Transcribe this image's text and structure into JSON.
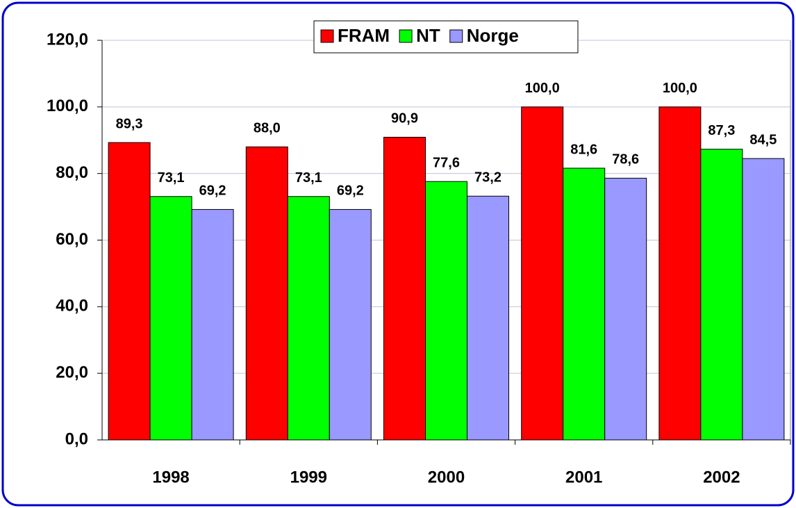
{
  "chart_data": {
    "type": "bar",
    "categories": [
      "1998",
      "1999",
      "2000",
      "2001",
      "2002"
    ],
    "series": [
      {
        "name": "FRAM",
        "color": "#ff0000",
        "values": [
          89.3,
          88.0,
          90.9,
          100.0,
          100.0
        ],
        "value_labels": [
          "89,3",
          "88,0",
          "90,9",
          "100,0",
          "100,0"
        ]
      },
      {
        "name": "NT",
        "color": "#00ff00",
        "values": [
          73.1,
          73.1,
          77.6,
          81.6,
          87.3
        ],
        "value_labels": [
          "73,1",
          "73,1",
          "77,6",
          "81,6",
          "87,3"
        ]
      },
      {
        "name": "Norge",
        "color": "#9999ff",
        "values": [
          69.2,
          69.2,
          73.2,
          78.6,
          84.5
        ],
        "value_labels": [
          "69,2",
          "69,2",
          "73,2",
          "78,6",
          "84,5"
        ]
      }
    ],
    "ylim": [
      0,
      120
    ],
    "yticks": [
      {
        "value": 0,
        "label": "0,0"
      },
      {
        "value": 20,
        "label": "20,0"
      },
      {
        "value": 40,
        "label": "40,0"
      },
      {
        "value": 60,
        "label": "60,0"
      },
      {
        "value": 80,
        "label": "80,0"
      },
      {
        "value": 100,
        "label": "100,0"
      },
      {
        "value": 120,
        "label": "120,0"
      }
    ],
    "grid": true,
    "legend": "top"
  }
}
